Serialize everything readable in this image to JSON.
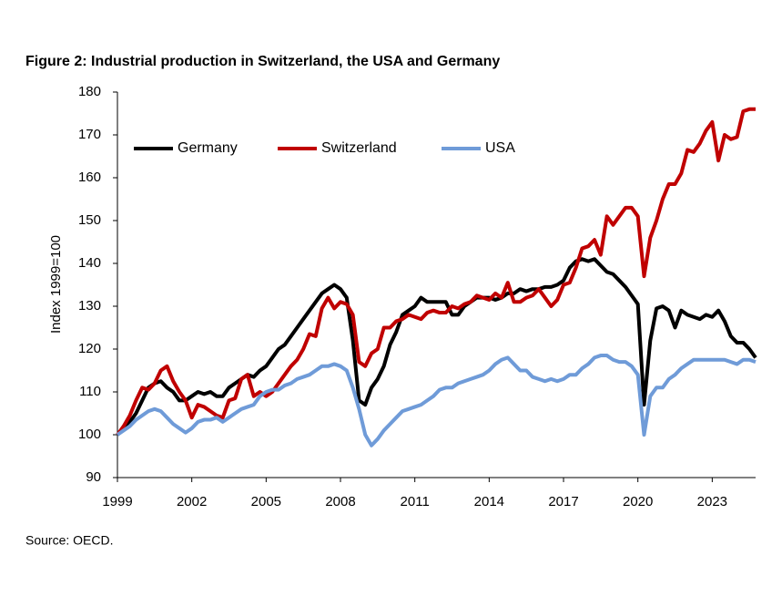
{
  "chart_data": {
    "type": "line",
    "title": "Figure 2: Industrial production in Switzerland, the USA and Germany",
    "y_label": "Index 1999=100",
    "source": "Source: OECD.",
    "xlim": [
      1999,
      2024.75
    ],
    "xticks": [
      1999,
      2002,
      2005,
      2008,
      2011,
      2014,
      2017,
      2020,
      2023
    ],
    "ylim": [
      90,
      180
    ],
    "yticks": [
      90,
      100,
      110,
      120,
      130,
      140,
      150,
      160,
      170,
      180
    ],
    "grid": false,
    "legend": "top-left",
    "x": [
      1999,
      1999.25,
      1999.5,
      1999.75,
      2000,
      2000.25,
      2000.5,
      2000.75,
      2001,
      2001.25,
      2001.5,
      2001.75,
      2002,
      2002.25,
      2002.5,
      2002.75,
      2003,
      2003.25,
      2003.5,
      2003.75,
      2004,
      2004.25,
      2004.5,
      2004.75,
      2005,
      2005.25,
      2005.5,
      2005.75,
      2006,
      2006.25,
      2006.5,
      2006.75,
      2007,
      2007.25,
      2007.5,
      2007.75,
      2008,
      2008.25,
      2008.5,
      2008.75,
      2009,
      2009.25,
      2009.5,
      2009.75,
      2010,
      2010.25,
      2010.5,
      2010.75,
      2011,
      2011.25,
      2011.5,
      2011.75,
      2012,
      2012.25,
      2012.5,
      2012.75,
      2013,
      2013.25,
      2013.5,
      2013.75,
      2014,
      2014.25,
      2014.5,
      2014.75,
      2015,
      2015.25,
      2015.5,
      2015.75,
      2016,
      2016.25,
      2016.5,
      2016.75,
      2017,
      2017.25,
      2017.5,
      2017.75,
      2018,
      2018.25,
      2018.5,
      2018.75,
      2019,
      2019.25,
      2019.5,
      2019.75,
      2020,
      2020.25,
      2020.5,
      2020.75,
      2021,
      2021.25,
      2021.5,
      2021.75,
      2022,
      2022.25,
      2022.5,
      2022.75,
      2023,
      2023.25,
      2023.5,
      2023.75,
      2024,
      2024.25,
      2024.5,
      2024.75
    ],
    "series": [
      {
        "name": "Germany",
        "color": "#000000",
        "values": [
          100,
          101.5,
          103,
          105,
          108,
          111,
          112,
          112.5,
          111,
          110,
          108,
          108,
          109,
          110,
          109.5,
          110,
          109,
          109,
          111,
          112,
          113,
          114,
          113.5,
          115,
          116,
          118,
          120,
          121,
          123,
          125,
          127,
          129,
          131,
          133,
          134,
          135,
          134,
          132,
          122,
          108,
          107,
          111,
          113,
          116,
          121,
          124,
          128,
          129,
          130,
          132,
          131,
          131,
          131,
          131,
          128,
          128,
          130,
          131,
          132,
          132,
          132,
          131.5,
          132,
          133,
          133,
          134,
          133.5,
          134,
          134,
          134.5,
          134.5,
          135,
          136,
          139,
          140.5,
          141,
          140.5,
          141,
          139.5,
          138,
          137.5,
          136,
          134.5,
          132.5,
          130.5,
          107,
          122,
          129.5,
          130,
          129,
          125,
          129,
          128,
          127.5,
          127,
          128,
          127.5,
          129,
          126.5,
          123,
          121.5,
          121.5,
          120,
          118
        ]
      },
      {
        "name": "Switzerland",
        "color": "#c00000",
        "values": [
          100,
          102,
          104.5,
          108,
          111,
          110.5,
          112,
          115,
          116,
          112.5,
          110,
          108,
          104,
          107,
          106.5,
          105.5,
          104.5,
          104,
          108,
          108.5,
          113,
          114,
          109,
          110,
          109,
          110,
          112,
          114,
          116,
          117.5,
          120,
          123.5,
          123,
          129.5,
          132,
          129.5,
          131,
          130.5,
          128,
          117,
          116,
          119,
          120,
          125,
          125,
          126.5,
          127,
          128,
          127.5,
          127,
          128.5,
          129,
          128.5,
          128.5,
          130,
          129.5,
          130.5,
          131,
          132.5,
          132,
          131.5,
          133,
          132,
          135.5,
          131,
          131,
          132,
          132.5,
          134,
          132,
          130,
          131.5,
          135,
          135.5,
          139,
          143.5,
          144,
          145.5,
          142,
          151,
          149,
          151,
          153,
          153,
          151,
          137,
          146,
          150,
          155,
          158.5,
          158.5,
          161,
          166.5,
          166,
          168,
          171,
          173,
          164,
          170,
          169,
          169.5,
          175.5,
          176,
          176
        ]
      },
      {
        "name": "USA",
        "color": "#6f9bd8",
        "values": [
          100,
          101,
          102,
          103.5,
          104.5,
          105.5,
          106,
          105.5,
          104,
          102.5,
          101.5,
          100.5,
          101.5,
          103,
          103.5,
          103.5,
          104,
          103,
          104,
          105,
          106,
          106.5,
          107,
          109,
          110,
          110.5,
          110.5,
          111.5,
          112,
          113,
          113.5,
          114,
          115,
          116,
          116,
          116.5,
          116,
          115,
          111,
          106,
          100,
          97.5,
          99,
          101,
          102.5,
          104,
          105.5,
          106,
          106.5,
          107,
          108,
          109,
          110.5,
          111,
          111,
          112,
          112.5,
          113,
          113.5,
          114,
          115,
          116.5,
          117.5,
          118,
          116.5,
          115,
          115,
          113.5,
          113,
          112.5,
          113,
          112.5,
          113,
          114,
          114,
          115.5,
          116.5,
          118,
          118.5,
          118.5,
          117.5,
          117,
          117,
          116,
          114,
          100,
          109,
          111,
          111,
          113,
          114,
          115.5,
          116.5,
          117.5,
          117.5,
          117.5,
          117.5,
          117.5,
          117.5,
          117,
          116.5,
          117.5,
          117.5,
          117
        ]
      }
    ]
  }
}
